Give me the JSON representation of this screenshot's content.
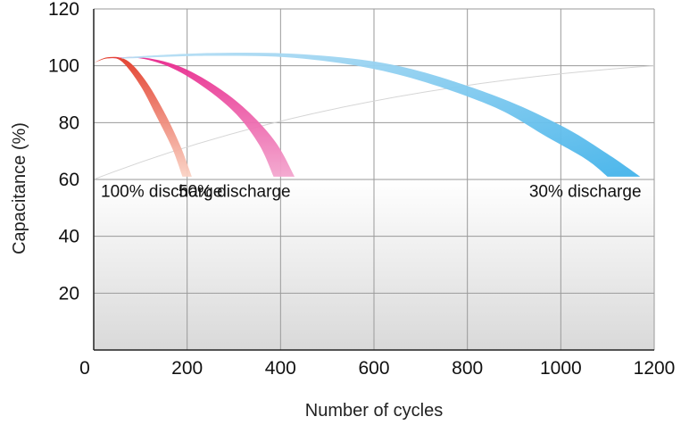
{
  "chart_data": {
    "type": "area",
    "title": "",
    "xlabel": "Number of cycles",
    "ylabel": "Capacitance (%)",
    "xlim": [
      0,
      1200
    ],
    "ylim": [
      0,
      120
    ],
    "x_ticks": [
      "0",
      "200",
      "400",
      "600",
      "800",
      "1000",
      "1200"
    ],
    "y_ticks": [
      "20",
      "40",
      "60",
      "80",
      "100",
      "120"
    ],
    "grid": true,
    "legend": "none",
    "series": [
      {
        "name": "100% discharge",
        "color": "#e23a28",
        "color_light": "#fad2c4",
        "upper": [
          [
            0,
            101
          ],
          [
            30,
            103
          ],
          [
            70,
            102
          ],
          [
            110,
            95
          ],
          [
            150,
            84
          ],
          [
            185,
            72
          ],
          [
            210,
            61
          ]
        ],
        "lower": [
          [
            0,
            101
          ],
          [
            30,
            102.6
          ],
          [
            60,
            101.5
          ],
          [
            100,
            93
          ],
          [
            135,
            82
          ],
          [
            168,
            71
          ],
          [
            190,
            61
          ]
        ]
      },
      {
        "name": "50% discharge",
        "color": "#e8278c",
        "color_light": "#f3a6ce",
        "upper": [
          [
            30,
            102.5
          ],
          [
            100,
            103
          ],
          [
            180,
            100
          ],
          [
            260,
            93
          ],
          [
            330,
            84
          ],
          [
            390,
            73
          ],
          [
            430,
            61
          ]
        ],
        "lower": [
          [
            30,
            102.5
          ],
          [
            100,
            102.6
          ],
          [
            170,
            99
          ],
          [
            240,
            92
          ],
          [
            305,
            83
          ],
          [
            355,
            72
          ],
          [
            385,
            61
          ]
        ]
      },
      {
        "name": "30% discharge",
        "color": "#43b3ea",
        "color_light": "#b9dff4",
        "upper": [
          [
            60,
            103
          ],
          [
            250,
            104.5
          ],
          [
            450,
            104
          ],
          [
            650,
            100
          ],
          [
            850,
            90
          ],
          [
            1000,
            79
          ],
          [
            1100,
            69
          ],
          [
            1170,
            61
          ]
        ],
        "lower": [
          [
            60,
            102.5
          ],
          [
            250,
            103.5
          ],
          [
            450,
            102.5
          ],
          [
            650,
            97
          ],
          [
            850,
            86
          ],
          [
            970,
            75
          ],
          [
            1055,
            67
          ],
          [
            1100,
            61
          ]
        ]
      }
    ],
    "annotations": [
      {
        "text": "100% discharge",
        "x": 0,
        "y": 57
      },
      {
        "text": "50% discharge",
        "x": 210,
        "y": 57
      },
      {
        "text": "30% discharge",
        "x": 1180,
        "y": 57
      }
    ]
  }
}
